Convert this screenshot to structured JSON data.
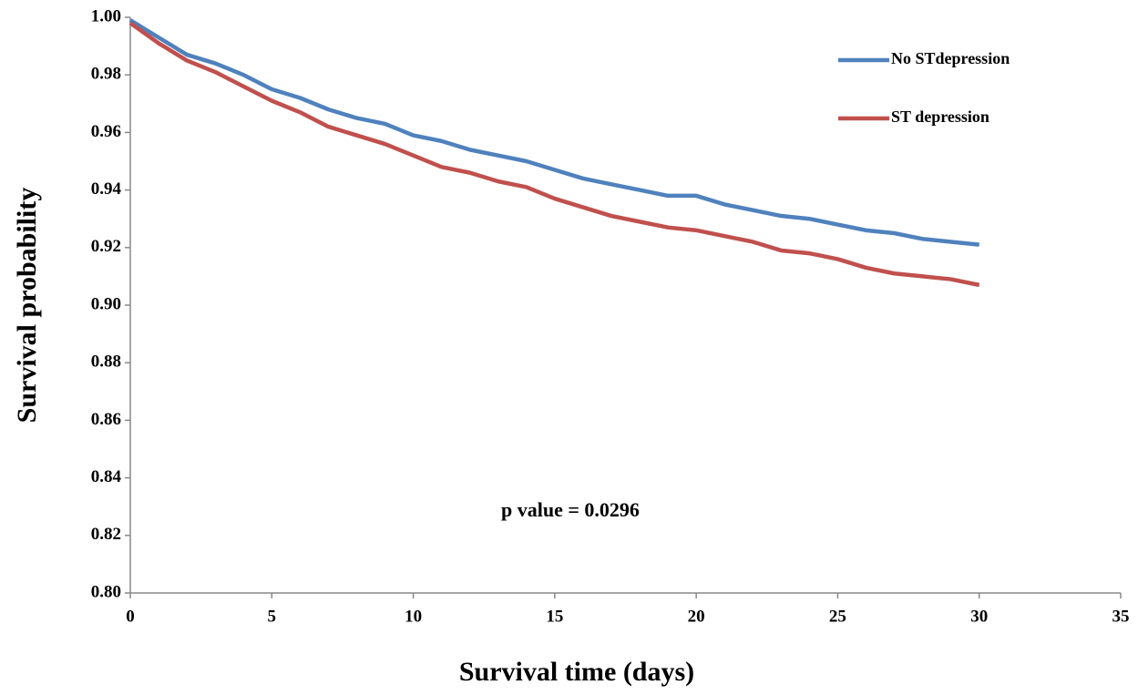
{
  "chart_data": {
    "type": "line",
    "x_label": "Survival  time (days)",
    "y_label": "Survival  probability",
    "annotation": "p value = 0.0296",
    "x": [
      0,
      1,
      2,
      3,
      4,
      5,
      6,
      7,
      8,
      9,
      10,
      11,
      12,
      13,
      14,
      15,
      16,
      17,
      18,
      19,
      20,
      21,
      22,
      23,
      24,
      25,
      26,
      27,
      28,
      29,
      30
    ],
    "series": [
      {
        "name": "No STdepression",
        "color": "#4f81bd",
        "values": [
          0.999,
          0.993,
          0.987,
          0.984,
          0.98,
          0.975,
          0.972,
          0.968,
          0.965,
          0.963,
          0.959,
          0.957,
          0.954,
          0.952,
          0.95,
          0.947,
          0.944,
          0.942,
          0.94,
          0.938,
          0.938,
          0.935,
          0.933,
          0.931,
          0.93,
          0.928,
          0.926,
          0.925,
          0.923,
          0.922,
          0.921
        ]
      },
      {
        "name": "ST depression",
        "color": "#c0504d",
        "values": [
          0.998,
          0.991,
          0.985,
          0.981,
          0.976,
          0.971,
          0.967,
          0.962,
          0.959,
          0.956,
          0.952,
          0.948,
          0.946,
          0.943,
          0.941,
          0.937,
          0.934,
          0.931,
          0.929,
          0.927,
          0.926,
          0.924,
          0.922,
          0.919,
          0.918,
          0.916,
          0.913,
          0.911,
          0.91,
          0.909,
          0.907
        ]
      }
    ],
    "xlim": [
      0,
      35
    ],
    "xticks": [
      0,
      5,
      10,
      15,
      20,
      25,
      30,
      35
    ],
    "ylim": [
      0.8,
      1.0
    ],
    "yticks": [
      {
        "value": 0.8,
        "label": "0.80"
      },
      {
        "value": 0.82,
        "label": "0.82"
      },
      {
        "value": 0.84,
        "label": "0.84"
      },
      {
        "value": 0.86,
        "label": "0.86"
      },
      {
        "value": 0.88,
        "label": "0.88"
      },
      {
        "value": 0.9,
        "label": "0.90"
      },
      {
        "value": 0.92,
        "label": "0.92"
      },
      {
        "value": 0.94,
        "label": "0.94"
      },
      {
        "value": 0.96,
        "label": "0.96"
      },
      {
        "value": 0.98,
        "label": "0.98"
      },
      {
        "value": 1.0,
        "label": "1.00"
      }
    ],
    "grid": false,
    "legend": "upper right"
  }
}
